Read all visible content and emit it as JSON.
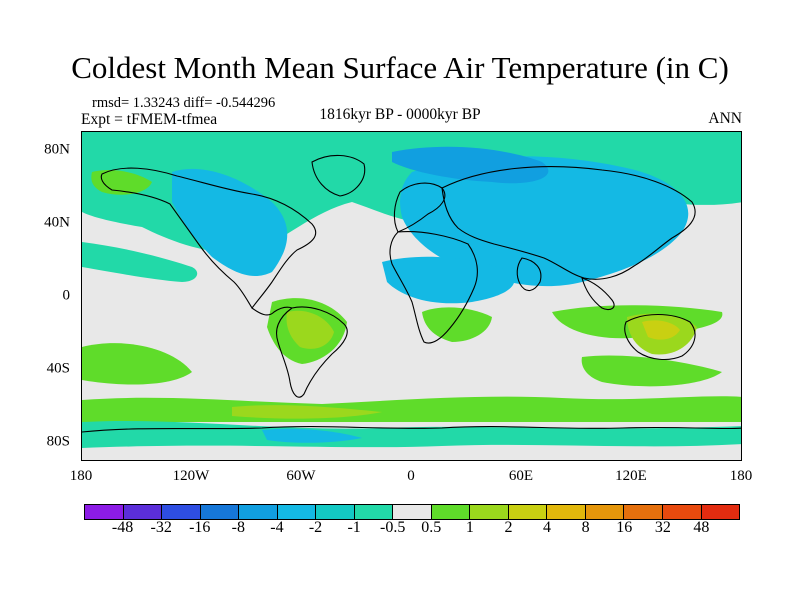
{
  "title": "Coldest Month Mean Surface Air Temperature (in C)",
  "stats": "rmsd= 1.33243 diff= -0.544296",
  "experiment": "Expt = tFMEM-tfmea",
  "period": "1816kyr BP - 0000kyr BP",
  "season": "ANN",
  "x_ticks": [
    "180",
    "120W",
    "60W",
    "0",
    "60E",
    "120E",
    "180"
  ],
  "y_ticks": [
    "80N",
    "40N",
    "0",
    "40S",
    "80S"
  ],
  "colorbar": {
    "colors": [
      "#8c1ce6",
      "#5b2ed9",
      "#2e4ee2",
      "#1677d8",
      "#119fe0",
      "#14b9e4",
      "#13c9c4",
      "#22d9a8",
      "#e8e8e8",
      "#5fdc2a",
      "#9bd81d",
      "#c9d012",
      "#e2b80c",
      "#e5960b",
      "#e5700d",
      "#e84a0e",
      "#e32c10"
    ],
    "labels": [
      "-48",
      "-32",
      "-16",
      "-8",
      "-4",
      "-2",
      "-1",
      "-0.5",
      "0.5",
      "1",
      "2",
      "4",
      "8",
      "16",
      "32",
      "48"
    ]
  },
  "colors": {
    "neutral": "#e8e8e8",
    "cool_strong": "#119fe0",
    "cool": "#14b9e4",
    "cool_light": "#22d9a8",
    "warm_light": "#5fdc2a",
    "warm": "#9bd81d",
    "warm_strong": "#c9d012",
    "warm_orange": "#e2b80c"
  }
}
